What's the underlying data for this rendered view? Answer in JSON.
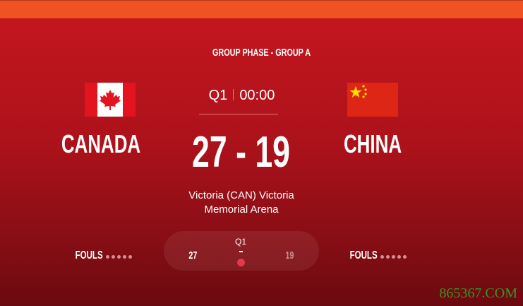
{
  "header": {
    "phase": "GROUP PHASE - GROUP A"
  },
  "clock": {
    "period": "Q1",
    "time": "00:00"
  },
  "home": {
    "name": "CANADA",
    "score": "27",
    "fouls_label": "FOULS",
    "fouls_count": 0,
    "flag": "canada-flag"
  },
  "away": {
    "name": "CHINA",
    "score": "19",
    "fouls_label": "FOULS",
    "fouls_count": 0,
    "flag": "china-flag"
  },
  "score_display": "27 - 19",
  "venue": {
    "line1": "Victoria (CAN) Victoria",
    "line2": "Memorial Arena"
  },
  "period_summary": {
    "period": "Q1",
    "home": "27",
    "away": "19",
    "live": true
  },
  "colors": {
    "accent_bar": "#ef5223",
    "background": "#c3161f",
    "live_dot": "#e3394b"
  },
  "watermark": "865367.COM"
}
